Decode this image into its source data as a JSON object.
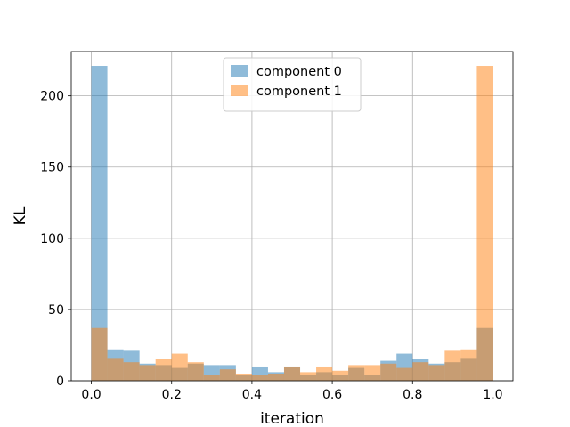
{
  "chart_data": {
    "type": "bar",
    "subtype": "histogram-overlay",
    "xlabel": "iteration",
    "ylabel": "KL",
    "xlim": [
      -0.05,
      1.05
    ],
    "ylim": [
      0,
      231
    ],
    "xticks": [
      0.0,
      0.2,
      0.4,
      0.6,
      0.8,
      1.0
    ],
    "xtick_labels": [
      "0.0",
      "0.2",
      "0.4",
      "0.6",
      "0.8",
      "1.0"
    ],
    "yticks": [
      0,
      50,
      100,
      150,
      200
    ],
    "ytick_labels": [
      "0",
      "50",
      "100",
      "150",
      "200"
    ],
    "grid": true,
    "legend_position": "top-center",
    "bin_edges": [
      0.0,
      0.04,
      0.08,
      0.12,
      0.16,
      0.2,
      0.24,
      0.28,
      0.32,
      0.36,
      0.4,
      0.44,
      0.48,
      0.52,
      0.56,
      0.6,
      0.64,
      0.68,
      0.72,
      0.76,
      0.8,
      0.84,
      0.88,
      0.92,
      0.96,
      1.0
    ],
    "series": [
      {
        "name": "component 0",
        "color": "#1f77b4",
        "alpha": 0.5,
        "values": [
          221,
          22,
          21,
          12,
          11,
          9,
          12,
          11,
          11,
          4,
          10,
          6,
          10,
          4,
          6,
          4,
          9,
          4,
          14,
          19,
          15,
          12,
          13,
          16,
          37
        ]
      },
      {
        "name": "component 1",
        "color": "#ff7f0e",
        "alpha": 0.5,
        "values": [
          37,
          16,
          13,
          11,
          15,
          19,
          13,
          4,
          8,
          5,
          4,
          5,
          10,
          6,
          10,
          7,
          11,
          11,
          12,
          9,
          13,
          11,
          21,
          22,
          221
        ]
      }
    ]
  }
}
